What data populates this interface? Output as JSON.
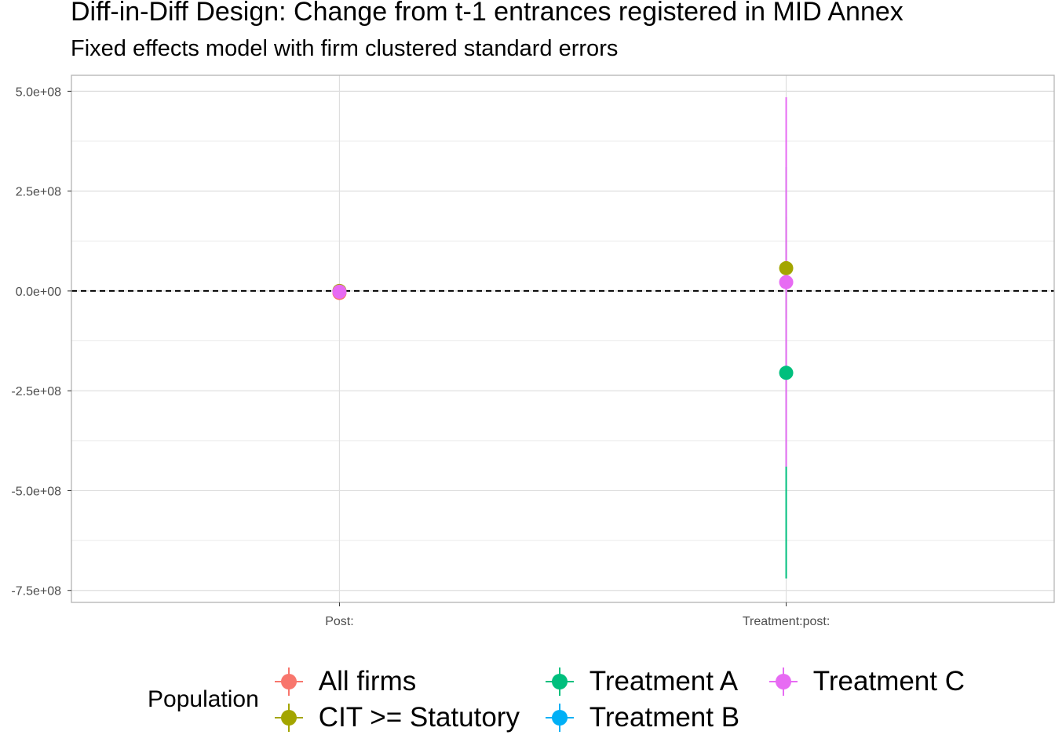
{
  "title": "Diff-in-Diff Design: Change from t-1 entrances registered in MID Annex",
  "subtitle": "Fixed effects model with firm clustered standard errors",
  "legend_title": "Population",
  "chart_data": {
    "type": "scatter",
    "title": "Diff-in-Diff Design: Change from t-1 entrances registered in MID Annex",
    "subtitle": "Fixed effects model with firm clustered standard errors",
    "xlabel": "",
    "ylabel": "",
    "categories": [
      "Post:",
      "Treatment:post:"
    ],
    "ylim": [
      -780000000,
      540000000
    ],
    "y_ticks": [
      500000000,
      250000000,
      0,
      -250000000,
      -500000000,
      -750000000
    ],
    "y_tick_labels": [
      "5.0e+08",
      "2.5e+08",
      "0.0e+00",
      "-2.5e+08",
      "-5.0e+08",
      "-7.5e+08"
    ],
    "reference_line": 0,
    "grid": true,
    "legend_position": "bottom",
    "series": [
      {
        "name": "All firms",
        "color": "#F8766D",
        "points": [
          {
            "x": "Post:",
            "y": -5000000,
            "lo": -7000000,
            "hi": -3000000
          }
        ]
      },
      {
        "name": "CIT >= Statutory",
        "color": "#A3A500",
        "points": [
          {
            "x": "Post:",
            "y": 0,
            "lo": -2000000,
            "hi": 2000000
          },
          {
            "x": "Treatment:post:",
            "y": 57000000,
            "lo": -70000000,
            "hi": 185000000
          }
        ]
      },
      {
        "name": "Treatment A",
        "color": "#00BF7D",
        "points": [
          {
            "x": "Treatment:post:",
            "y": -205000000,
            "lo": -720000000,
            "hi": 310000000
          }
        ]
      },
      {
        "name": "Treatment B",
        "color": "#00B0F6",
        "points": []
      },
      {
        "name": "Treatment C",
        "color": "#E76BF3",
        "points": [
          {
            "x": "Post:",
            "y": -2000000,
            "lo": -4000000,
            "hi": 0
          },
          {
            "x": "Treatment:post:",
            "y": 22000000,
            "lo": -440000000,
            "hi": 485000000
          }
        ]
      }
    ]
  }
}
